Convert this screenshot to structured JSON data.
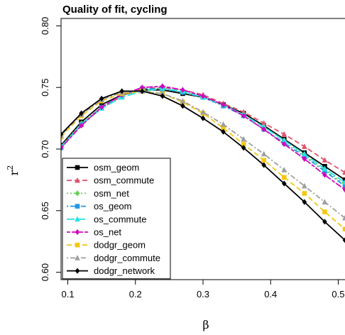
{
  "chart_data": {
    "type": "line",
    "title": "Quality of fit, cycling",
    "xlabel": "β",
    "ylabel": "r",
    "ylabel_sup": "2",
    "xlim": [
      0.09,
      0.51
    ],
    "ylim": [
      0.594,
      0.806
    ],
    "x_ticks": [
      0.1,
      0.2,
      0.3,
      0.4,
      0.5
    ],
    "x_tick_labels": [
      "0.1",
      "0.2",
      "0.3",
      "0.4",
      "0.5"
    ],
    "y_ticks": [
      0.6,
      0.65,
      0.7,
      0.75,
      0.8
    ],
    "y_tick_labels": [
      "0.60",
      "0.65",
      "0.70",
      "0.75",
      "0.80"
    ],
    "grid": false,
    "legend_position": "bottom-left",
    "x": [
      0.09,
      0.12,
      0.15,
      0.18,
      0.21,
      0.24,
      0.27,
      0.3,
      0.33,
      0.36,
      0.39,
      0.42,
      0.45,
      0.48,
      0.51
    ],
    "series": [
      {
        "name": "osm_geom",
        "color": "#000000",
        "dash": "solid",
        "marker": "square",
        "values": [
          0.703,
          0.722,
          0.736,
          0.744,
          0.748,
          0.748,
          0.745,
          0.742,
          0.736,
          0.729,
          0.719,
          0.708,
          0.697,
          0.686,
          0.675
        ]
      },
      {
        "name": "osm_commute",
        "color": "#DF536B",
        "dash": "dashed",
        "marker": "triangle",
        "values": [
          0.702,
          0.72,
          0.733,
          0.743,
          0.749,
          0.75,
          0.748,
          0.744,
          0.737,
          0.73,
          0.721,
          0.712,
          0.702,
          0.691,
          0.681
        ]
      },
      {
        "name": "osm_net",
        "color": "#61D04F",
        "dash": "dotted",
        "marker": "diamond",
        "values": [
          0.702,
          0.721,
          0.734,
          0.743,
          0.748,
          0.749,
          0.746,
          0.742,
          0.736,
          0.728,
          0.718,
          0.707,
          0.695,
          0.683,
          0.671
        ]
      },
      {
        "name": "os_geom",
        "color": "#2297E6",
        "dash": "dotdash",
        "marker": "square",
        "values": [
          0.701,
          0.72,
          0.734,
          0.744,
          0.749,
          0.749,
          0.746,
          0.742,
          0.735,
          0.727,
          0.716,
          0.705,
          0.694,
          0.682,
          0.67
        ]
      },
      {
        "name": "os_commute",
        "color": "#28E2E5",
        "dash": "longdash",
        "marker": "triangle",
        "values": [
          0.702,
          0.72,
          0.733,
          0.742,
          0.747,
          0.749,
          0.747,
          0.742,
          0.736,
          0.728,
          0.718,
          0.707,
          0.696,
          0.684,
          0.673
        ]
      },
      {
        "name": "os_net",
        "color": "#CD0BBC",
        "dash": "twodash",
        "marker": "diamond",
        "values": [
          0.701,
          0.719,
          0.734,
          0.744,
          0.75,
          0.751,
          0.748,
          0.743,
          0.736,
          0.727,
          0.716,
          0.704,
          0.692,
          0.679,
          0.667
        ]
      },
      {
        "name": "dodgr_geom",
        "color": "#F5C710",
        "dash": "dashed",
        "marker": "square",
        "values": [
          0.71,
          0.727,
          0.739,
          0.745,
          0.747,
          0.745,
          0.738,
          0.729,
          0.717,
          0.704,
          0.691,
          0.677,
          0.664,
          0.649,
          0.635
        ]
      },
      {
        "name": "dodgr_commute",
        "color": "#9E9E9E",
        "dash": "dotdash",
        "marker": "triangle",
        "values": [
          0.711,
          0.728,
          0.74,
          0.746,
          0.747,
          0.745,
          0.739,
          0.73,
          0.72,
          0.708,
          0.696,
          0.683,
          0.67,
          0.657,
          0.644
        ]
      },
      {
        "name": "dodgr_network",
        "color": "#000000",
        "dash": "solid",
        "marker": "diamond",
        "values": [
          0.712,
          0.729,
          0.741,
          0.747,
          0.747,
          0.743,
          0.735,
          0.725,
          0.714,
          0.701,
          0.687,
          0.672,
          0.657,
          0.641,
          0.626
        ]
      }
    ]
  }
}
